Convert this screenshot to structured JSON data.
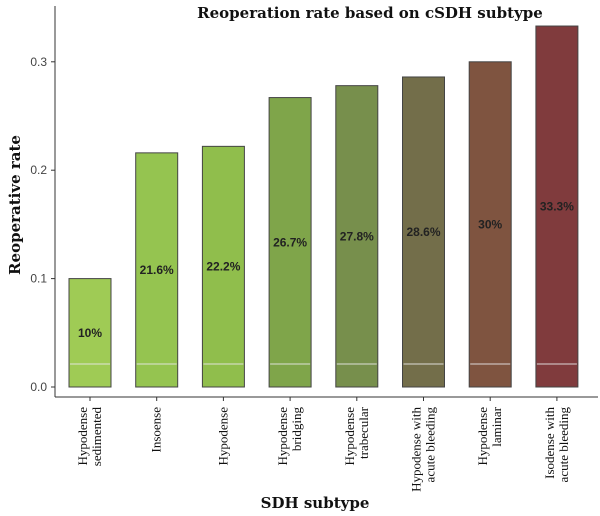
{
  "chart_data": {
    "type": "bar",
    "title": "Reoperation rate based on cSDH subtype",
    "xlabel": "SDH subtype",
    "ylabel": "Reoperative rate",
    "ylim": [
      0,
      0.335
    ],
    "yticks": [
      "0.0",
      "0.1",
      "0.2",
      "0.3"
    ],
    "grid": false,
    "categories": [
      [
        "Hypodense",
        "sedimented"
      ],
      [
        "Insoense"
      ],
      [
        "Hypodense"
      ],
      [
        "Hypodense",
        "bridging"
      ],
      [
        "Hypodense",
        "trabecular"
      ],
      [
        "Hypodense with",
        "acute bleeding"
      ],
      [
        "Hypodense",
        "laminar"
      ],
      [
        "Isodense with",
        "acute bleeding"
      ]
    ],
    "values": [
      0.1,
      0.216,
      0.222,
      0.267,
      0.278,
      0.286,
      0.3,
      0.333
    ],
    "data_labels": [
      "10%",
      "21.6%",
      "22.2%",
      "26.7%",
      "27.8%",
      "28.6%",
      "30%",
      "33.3%"
    ],
    "colors": [
      "#9fcb55",
      "#95c450",
      "#90be4c",
      "#7fa54a",
      "#778f4c",
      "#736e4a",
      "#7f5440",
      "#803b3d"
    ]
  }
}
